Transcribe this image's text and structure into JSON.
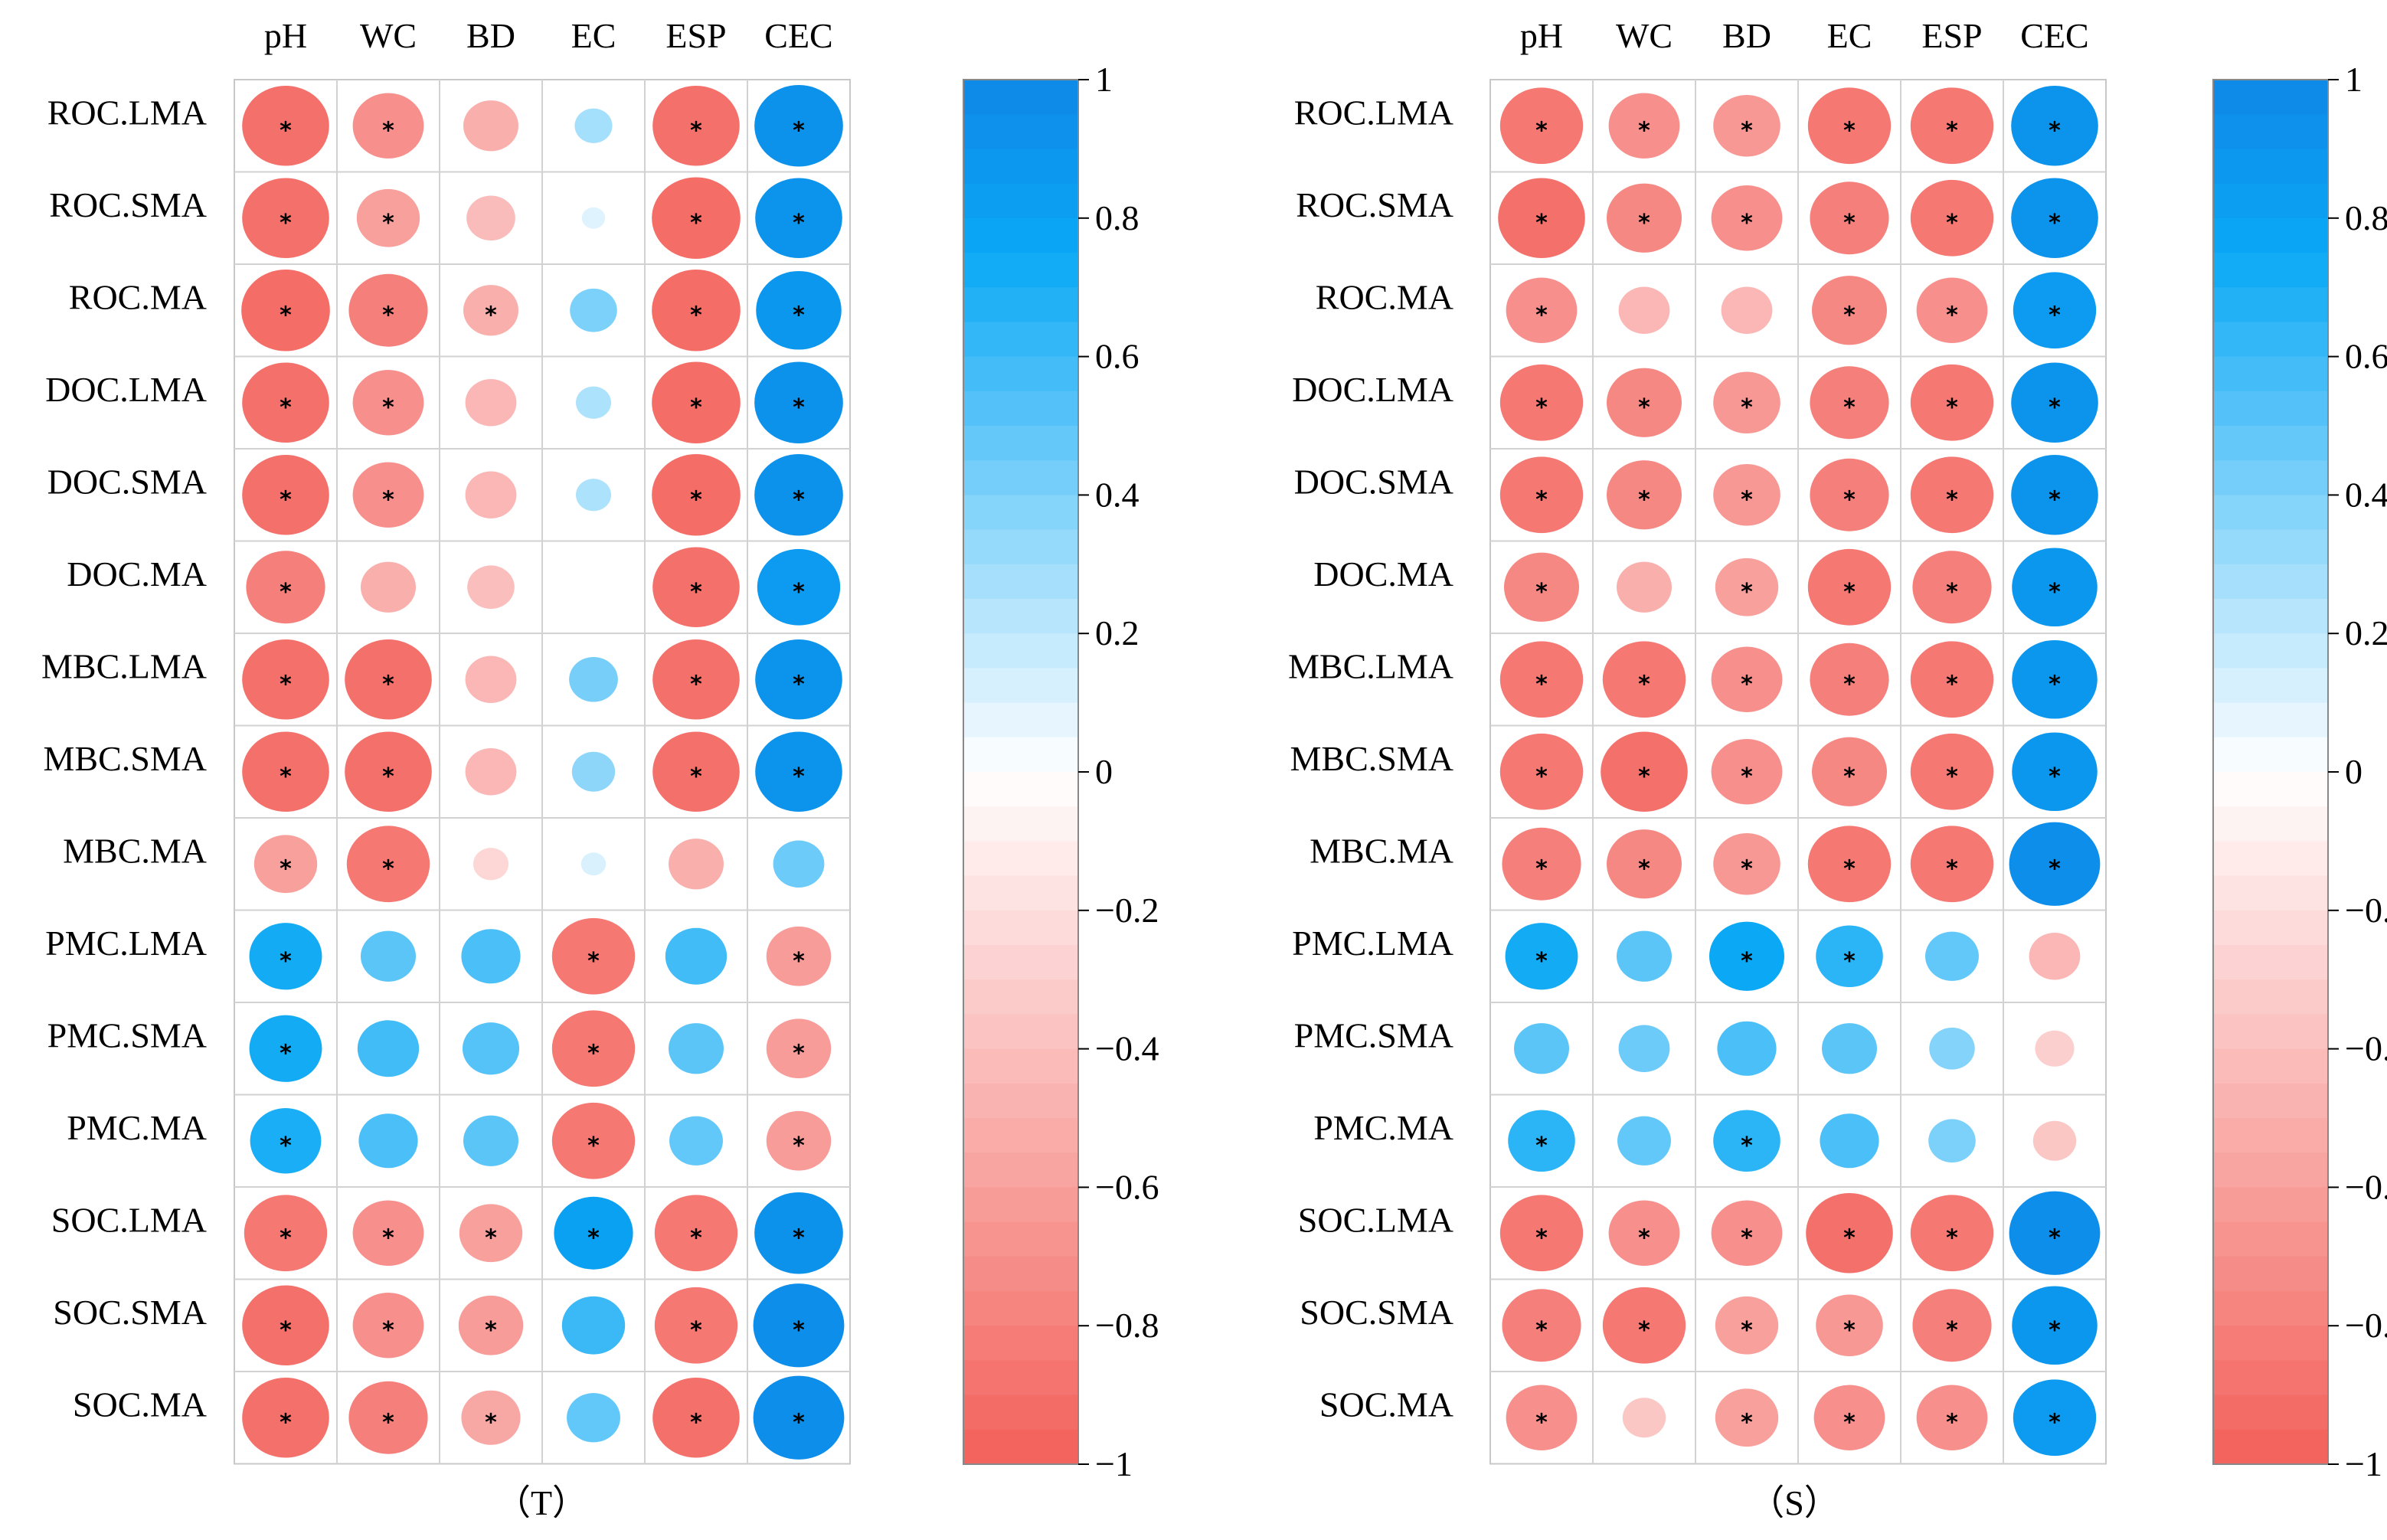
{
  "chart_data": [
    {
      "type": "heatmap",
      "panel_label": "（T）",
      "columns": [
        "pH",
        "WC",
        "BD",
        "EC",
        "ESP",
        "CEC"
      ],
      "rows": [
        "ROC.LMA",
        "ROC.SMA",
        "ROC.MA",
        "DOC.LMA",
        "DOC.SMA",
        "DOC.MA",
        "MBC.LMA",
        "MBC.SMA",
        "MBC.MA",
        "PMC.LMA",
        "PMC.SMA",
        "PMC.MA",
        "SOC.LMA",
        "SOC.SMA",
        "SOC.MA"
      ],
      "values": [
        [
          -0.9,
          -0.7,
          -0.5,
          0.28,
          -0.9,
          0.92
        ],
        [
          -0.9,
          -0.6,
          -0.42,
          0.1,
          -0.92,
          0.9
        ],
        [
          -0.92,
          -0.8,
          -0.5,
          0.4,
          -0.92,
          0.88
        ],
        [
          -0.9,
          -0.7,
          -0.45,
          0.25,
          -0.92,
          0.92
        ],
        [
          -0.9,
          -0.7,
          -0.45,
          0.25,
          -0.92,
          0.92
        ],
        [
          -0.8,
          -0.5,
          -0.4,
          0.0,
          -0.9,
          0.85
        ],
        [
          -0.9,
          -0.9,
          -0.45,
          0.42,
          -0.9,
          0.9
        ],
        [
          -0.9,
          -0.9,
          -0.45,
          0.35,
          -0.9,
          0.9
        ],
        [
          -0.6,
          -0.85,
          -0.25,
          0.12,
          -0.5,
          0.45
        ],
        [
          0.72,
          0.5,
          0.55,
          -0.85,
          0.58,
          -0.62
        ],
        [
          0.72,
          0.58,
          0.52,
          -0.85,
          0.5,
          -0.62
        ],
        [
          0.7,
          0.55,
          0.5,
          -0.85,
          0.48,
          -0.62
        ],
        [
          -0.85,
          -0.7,
          -0.6,
          0.8,
          -0.85,
          0.92
        ],
        [
          -0.9,
          -0.7,
          -0.62,
          0.6,
          -0.85,
          0.95
        ],
        [
          -0.9,
          -0.8,
          -0.55,
          0.48,
          -0.9,
          0.95
        ]
      ],
      "significant": [
        [
          1,
          1,
          0,
          0,
          1,
          1
        ],
        [
          1,
          1,
          0,
          0,
          1,
          1
        ],
        [
          1,
          1,
          1,
          0,
          1,
          1
        ],
        [
          1,
          1,
          0,
          0,
          1,
          1
        ],
        [
          1,
          1,
          0,
          0,
          1,
          1
        ],
        [
          1,
          0,
          0,
          0,
          1,
          1
        ],
        [
          1,
          1,
          0,
          0,
          1,
          1
        ],
        [
          1,
          1,
          0,
          0,
          1,
          1
        ],
        [
          1,
          1,
          0,
          0,
          0,
          0
        ],
        [
          1,
          0,
          0,
          1,
          0,
          1
        ],
        [
          1,
          0,
          0,
          1,
          0,
          1
        ],
        [
          1,
          0,
          0,
          1,
          0,
          1
        ],
        [
          1,
          1,
          1,
          1,
          1,
          1
        ],
        [
          1,
          1,
          1,
          0,
          1,
          1
        ],
        [
          1,
          1,
          1,
          0,
          1,
          1
        ]
      ],
      "colorbar_ticks": [
        "1",
        "0.8",
        "0.6",
        "0.4",
        "0.2",
        "0",
        "−0.2",
        "−0.4",
        "−0.6",
        "−0.8",
        "−1"
      ],
      "colorbar_range": [
        -1,
        1
      ],
      "colors": {
        "negative": "#f3605a",
        "zero": "#ffffff",
        "positive": "#0e87e8",
        "bright_positive": "#0aa8f5"
      }
    },
    {
      "type": "heatmap",
      "panel_label": "（S）",
      "columns": [
        "pH",
        "WC",
        "BD",
        "EC",
        "ESP",
        "CEC"
      ],
      "rows": [
        "ROC.LMA",
        "ROC.SMA",
        "ROC.MA",
        "DOC.LMA",
        "DOC.SMA",
        "DOC.MA",
        "MBC.LMA",
        "MBC.SMA",
        "MBC.MA",
        "PMC.LMA",
        "PMC.SMA",
        "PMC.MA",
        "SOC.LMA",
        "SOC.SMA",
        "SOC.MA"
      ],
      "values": [
        [
          -0.85,
          -0.7,
          -0.65,
          -0.85,
          -0.85,
          0.9
        ],
        [
          -0.9,
          -0.75,
          -0.7,
          -0.8,
          -0.85,
          0.9
        ],
        [
          -0.7,
          -0.45,
          -0.45,
          -0.75,
          -0.7,
          0.85
        ],
        [
          -0.85,
          -0.75,
          -0.65,
          -0.8,
          -0.85,
          0.9
        ],
        [
          -0.85,
          -0.75,
          -0.65,
          -0.8,
          -0.85,
          0.9
        ],
        [
          -0.75,
          -0.5,
          -0.6,
          -0.85,
          -0.8,
          0.88
        ],
        [
          -0.85,
          -0.85,
          -0.7,
          -0.8,
          -0.85,
          0.88
        ],
        [
          -0.85,
          -0.9,
          -0.7,
          -0.75,
          -0.85,
          0.88
        ],
        [
          -0.8,
          -0.75,
          -0.65,
          -0.85,
          -0.85,
          0.95
        ],
        [
          0.72,
          0.5,
          0.75,
          0.65,
          0.48,
          -0.45
        ],
        [
          0.5,
          0.45,
          0.55,
          0.5,
          0.38,
          -0.3
        ],
        [
          0.65,
          0.48,
          0.65,
          0.55,
          0.4,
          -0.35
        ],
        [
          -0.85,
          -0.7,
          -0.7,
          -0.9,
          -0.85,
          0.95
        ],
        [
          -0.8,
          -0.85,
          -0.6,
          -0.65,
          -0.8,
          0.88
        ],
        [
          -0.7,
          -0.35,
          -0.6,
          -0.7,
          -0.7,
          0.85
        ]
      ],
      "significant": [
        [
          1,
          1,
          1,
          1,
          1,
          1
        ],
        [
          1,
          1,
          1,
          1,
          1,
          1
        ],
        [
          1,
          0,
          0,
          1,
          1,
          1
        ],
        [
          1,
          1,
          1,
          1,
          1,
          1
        ],
        [
          1,
          1,
          1,
          1,
          1,
          1
        ],
        [
          1,
          0,
          1,
          1,
          1,
          1
        ],
        [
          1,
          1,
          1,
          1,
          1,
          1
        ],
        [
          1,
          1,
          1,
          1,
          1,
          1
        ],
        [
          1,
          1,
          1,
          1,
          1,
          1
        ],
        [
          1,
          0,
          1,
          1,
          0,
          0
        ],
        [
          0,
          0,
          0,
          0,
          0,
          0
        ],
        [
          1,
          0,
          1,
          0,
          0,
          0
        ],
        [
          1,
          1,
          1,
          1,
          1,
          1
        ],
        [
          1,
          1,
          1,
          1,
          1,
          1
        ],
        [
          1,
          0,
          1,
          1,
          1,
          1
        ]
      ],
      "colorbar_ticks": [
        "1",
        "0.8",
        "0.6",
        "0.4",
        "0.2",
        "0",
        "−0.2",
        "−0.4",
        "−0.6",
        "−0.8",
        "−1"
      ],
      "colorbar_range": [
        -1,
        1
      ],
      "colors": {
        "negative": "#f3605a",
        "zero": "#ffffff",
        "positive": "#0e87e8",
        "bright_positive": "#0aa8f5"
      }
    }
  ]
}
